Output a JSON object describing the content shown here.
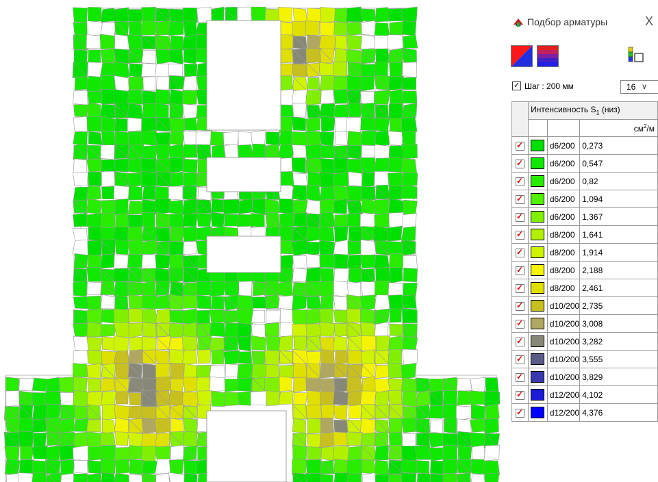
{
  "dialog": {
    "title": "Подбор арматуры",
    "close_glyph": "X",
    "step_checked": true,
    "step_label": "Шаг : 200 мм",
    "diameter_value": "16",
    "column_header": "Интенсивность S",
    "column_header_sub": "1",
    "column_header_tail": " (низ)",
    "unit_main": "см",
    "unit_sup": "2",
    "unit_tail": "/м",
    "icons": [
      "red-blue-split-icon",
      "gradient-icon",
      "bar-chart-icon"
    ]
  },
  "legend": {
    "rows": [
      {
        "label": "d6/200",
        "value": "0,273",
        "color": "#00e000"
      },
      {
        "label": "d6/200",
        "value": "0,547",
        "color": "#10e800"
      },
      {
        "label": "d6/200",
        "value": "0,82",
        "color": "#28ec00"
      },
      {
        "label": "d6/200",
        "value": "1,094",
        "color": "#50f000"
      },
      {
        "label": "d6/200",
        "value": "1,367",
        "color": "#80f000"
      },
      {
        "label": "d8/200",
        "value": "1,641",
        "color": "#b0f000"
      },
      {
        "label": "d8/200",
        "value": "1,914",
        "color": "#d0f400"
      },
      {
        "label": "d8/200",
        "value": "2,188",
        "color": "#f4f400"
      },
      {
        "label": "d8/200",
        "value": "2,461",
        "color": "#e0e000"
      },
      {
        "label": "d10/200",
        "value": "2,735",
        "color": "#c8c020"
      },
      {
        "label": "d10/200",
        "value": "3,008",
        "color": "#b0a860"
      },
      {
        "label": "d10/200",
        "value": "3,282",
        "color": "#888878"
      },
      {
        "label": "d10/200",
        "value": "3,555",
        "color": "#5a5a88"
      },
      {
        "label": "d10/200",
        "value": "3,829",
        "color": "#3838b0"
      },
      {
        "label": "d12/200",
        "value": "4,102",
        "color": "#1c1cd8"
      },
      {
        "label": "d12/200",
        "value": "4,376",
        "color": "#0000ff"
      }
    ]
  }
}
